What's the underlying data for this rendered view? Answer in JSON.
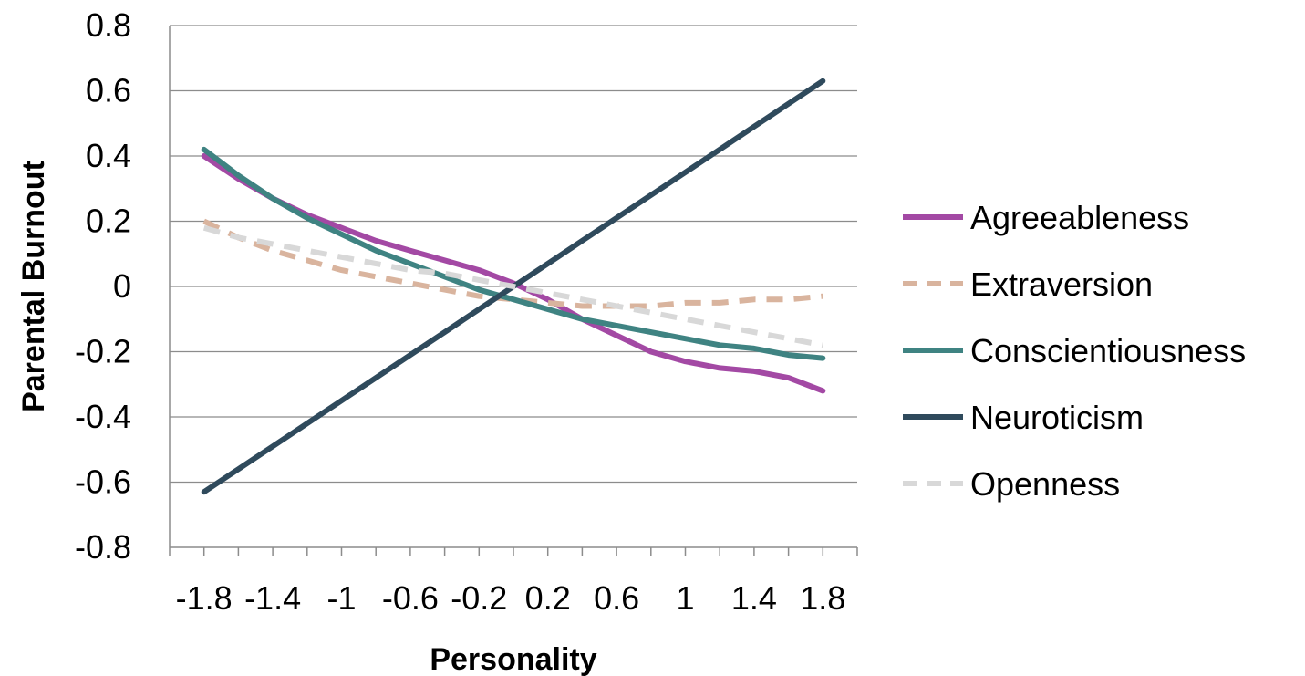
{
  "chart_data": {
    "type": "line",
    "xlabel": "Personality",
    "ylabel": "Parental Burnout",
    "x_ticks": [
      "-1.8",
      "-1.4",
      "-1",
      "-0.6",
      "-0.2",
      "0.2",
      "0.6",
      "1",
      "1.4",
      "1.8"
    ],
    "x_tick_values": [
      -1.8,
      -1.4,
      -1.0,
      -0.6,
      -0.2,
      0.2,
      0.6,
      1.0,
      1.4,
      1.8
    ],
    "y_ticks": [
      "0.8",
      "0.6",
      "0.4",
      "0.2",
      "0",
      "-0.2",
      "-0.4",
      "-0.6",
      "-0.8"
    ],
    "y_tick_values": [
      0.8,
      0.6,
      0.4,
      0.2,
      0,
      -0.2,
      -0.4,
      -0.6,
      -0.8
    ],
    "xlim": [
      -2.0,
      2.0
    ],
    "ylim": [
      -0.8,
      0.8
    ],
    "grid": "horizontal",
    "legend_position": "right",
    "x": [
      -1.8,
      -1.6,
      -1.4,
      -1.2,
      -1.0,
      -0.8,
      -0.6,
      -0.4,
      -0.2,
      0.0,
      0.2,
      0.4,
      0.6,
      0.8,
      1.0,
      1.2,
      1.4,
      1.6,
      1.8
    ],
    "series": [
      {
        "name": "Agreeableness",
        "color": "#A349A4",
        "dashed": false,
        "values": [
          0.4,
          0.33,
          0.27,
          0.22,
          0.18,
          0.14,
          0.11,
          0.08,
          0.05,
          0.01,
          -0.04,
          -0.1,
          -0.15,
          -0.2,
          -0.23,
          -0.25,
          -0.26,
          -0.28,
          -0.32
        ]
      },
      {
        "name": "Extraversion",
        "color": "#D9B49E",
        "dashed": true,
        "values": [
          0.2,
          0.15,
          0.11,
          0.08,
          0.05,
          0.03,
          0.01,
          -0.01,
          -0.03,
          -0.04,
          -0.05,
          -0.06,
          -0.06,
          -0.06,
          -0.05,
          -0.05,
          -0.04,
          -0.04,
          -0.03
        ]
      },
      {
        "name": "Conscientiousness",
        "color": "#3F8382",
        "dashed": false,
        "values": [
          0.42,
          0.34,
          0.27,
          0.21,
          0.16,
          0.11,
          0.07,
          0.03,
          -0.01,
          -0.04,
          -0.07,
          -0.1,
          -0.12,
          -0.14,
          -0.16,
          -0.18,
          -0.19,
          -0.21,
          -0.22
        ]
      },
      {
        "name": "Neuroticism",
        "color": "#2F4A5C",
        "dashed": false,
        "values": [
          -0.63,
          -0.56,
          -0.49,
          -0.42,
          -0.35,
          -0.28,
          -0.21,
          -0.14,
          -0.07,
          0.0,
          0.07,
          0.14,
          0.21,
          0.28,
          0.35,
          0.42,
          0.49,
          0.56,
          0.63
        ]
      },
      {
        "name": "Openness",
        "color": "#D8D8D8",
        "dashed": true,
        "values": [
          0.18,
          0.15,
          0.13,
          0.11,
          0.09,
          0.07,
          0.05,
          0.04,
          0.02,
          0.0,
          -0.02,
          -0.04,
          -0.06,
          -0.08,
          -0.1,
          -0.12,
          -0.14,
          -0.16,
          -0.18
        ]
      }
    ]
  }
}
